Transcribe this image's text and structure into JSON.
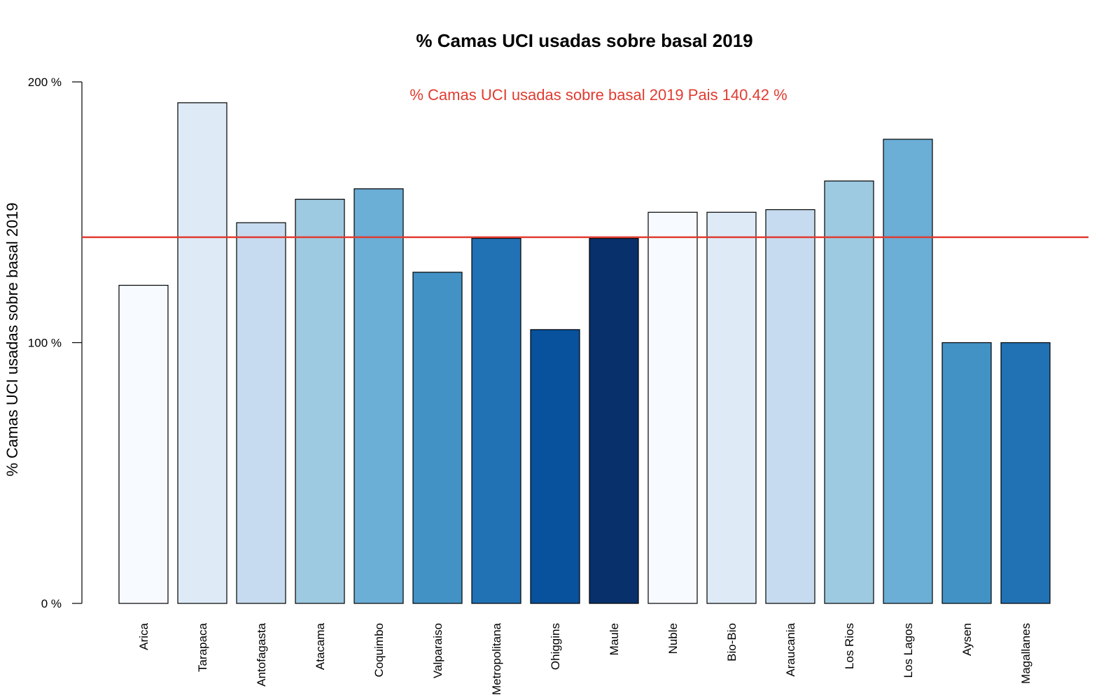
{
  "chart_data": {
    "type": "bar",
    "title": "% Camas UCI usadas sobre basal 2019",
    "ylabel": "% Camas UCI usadas sobre basal 2019",
    "xlabel": "",
    "ylim": [
      0,
      200
    ],
    "yticks": [
      0,
      100,
      200
    ],
    "ytick_labels": [
      "0 %",
      "100 %",
      "200 %"
    ],
    "grid": false,
    "categories": [
      "Arica",
      "Tarapaca",
      "Antofagasta",
      "Atacama",
      "Coquimbo",
      "Valparaiso",
      "Metropolitana",
      "Ohiggins",
      "Maule",
      "Nuble",
      "Bio-Bio",
      "Araucania",
      "Los Rios",
      "Los Lagos",
      "Aysen",
      "Magallanes"
    ],
    "values": [
      122,
      192,
      146,
      155,
      159,
      127,
      140,
      105,
      140,
      150,
      150,
      151,
      162,
      178,
      100,
      100
    ],
    "bar_colors": [
      "#f7fbff",
      "#deebf7",
      "#c6dbef",
      "#9ecae1",
      "#6baed6",
      "#4292c6",
      "#2171b5",
      "#08519c",
      "#08306b",
      "#f7fbff",
      "#deebf7",
      "#c6dbef",
      "#9ecae1",
      "#6baed6",
      "#4292c6",
      "#2171b5"
    ],
    "reference_line": {
      "value": 140.42,
      "color": "#e03c31",
      "label": "% Camas UCI usadas sobre basal 2019 Pais 140.42 %"
    }
  }
}
